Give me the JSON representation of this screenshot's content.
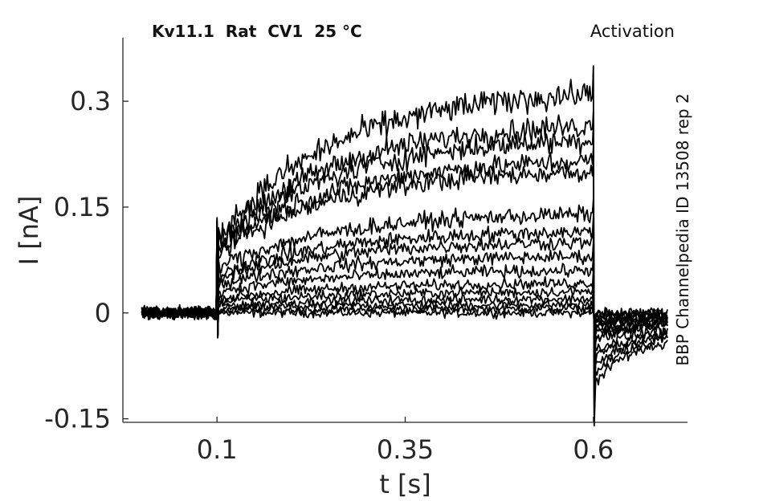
{
  "header": {
    "left": "Kv11.1  Rat  CV1  25 °C",
    "right": "Activation"
  },
  "side_label": "BBP Channelpedia ID 13508 rep 2",
  "chart_data": {
    "type": "line",
    "xlabel": "t [s]",
    "ylabel": "I [nA]",
    "xlim": [
      -0.025,
      0.725
    ],
    "ylim": [
      -0.155,
      0.39
    ],
    "xticks": [
      0.1,
      0.35,
      0.6
    ],
    "xtick_labels": [
      "0.1",
      "0.35",
      "0.6"
    ],
    "yticks": [
      -0.15,
      0,
      0.15,
      0.3
    ],
    "ytick_labels": [
      "-0.15",
      "0",
      "0.15",
      "0.3"
    ],
    "grid": false,
    "line_color": "#000000",
    "protocol": {
      "t_start": 0.0,
      "step_on": 0.1,
      "step_off": 0.6,
      "t_end": 0.7
    },
    "series": [
      {
        "initial": 0.0,
        "final": 0.0,
        "tail": 0.0
      },
      {
        "initial": 0.003,
        "final": 0.006,
        "tail": -0.003
      },
      {
        "initial": 0.006,
        "final": 0.012,
        "tail": -0.005
      },
      {
        "initial": 0.01,
        "final": 0.02,
        "tail": -0.008
      },
      {
        "initial": 0.015,
        "final": 0.03,
        "tail": -0.012
      },
      {
        "initial": 0.02,
        "final": 0.042,
        "tail": -0.016
      },
      {
        "initial": 0.03,
        "final": 0.06,
        "tail": -0.02
      },
      {
        "initial": 0.04,
        "final": 0.08,
        "tail": -0.025
      },
      {
        "initial": 0.048,
        "final": 0.1,
        "tail": -0.03
      },
      {
        "initial": 0.055,
        "final": 0.115,
        "tail": -0.035
      },
      {
        "initial": 0.065,
        "final": 0.14,
        "tail": -0.04
      },
      {
        "initial": 0.085,
        "final": 0.2,
        "tail": -0.055
      },
      {
        "initial": 0.09,
        "final": 0.215,
        "tail": -0.065
      },
      {
        "initial": 0.095,
        "final": 0.245,
        "tail": -0.075
      },
      {
        "initial": 0.1,
        "final": 0.265,
        "tail": -0.085
      },
      {
        "initial": 0.105,
        "final": 0.31,
        "tail": -0.1
      }
    ]
  }
}
